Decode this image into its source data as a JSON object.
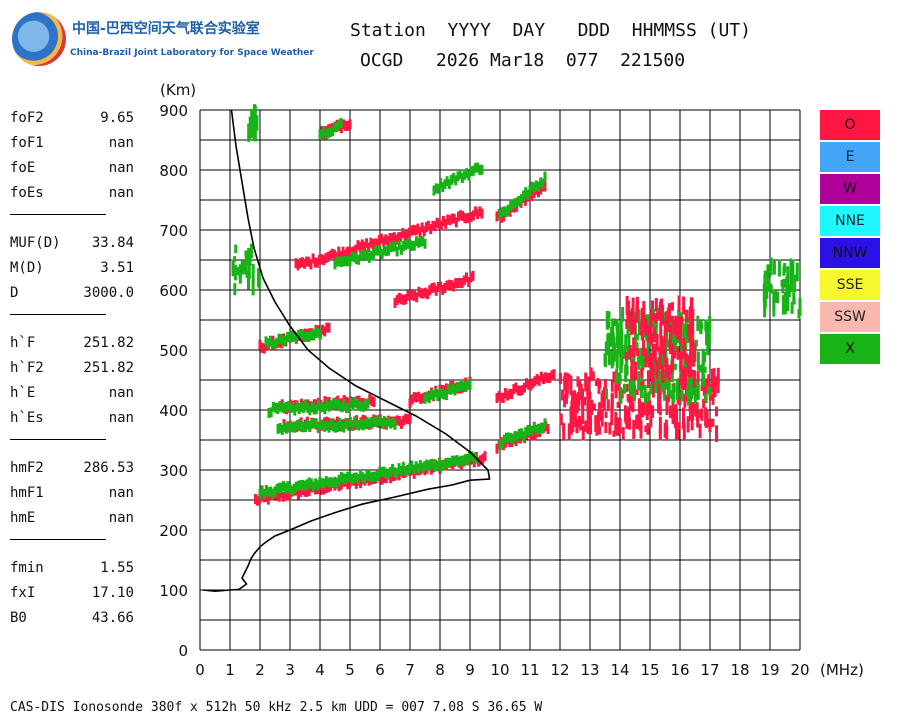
{
  "header": {
    "logo_cn": "中国-巴西空间天气联合实验室",
    "logo_en": "China-Brazil Joint Laboratory for Space Weather",
    "station_header": "Station  YYYY  DAY   DDD  HHMMSS (UT)",
    "station_values": "OCGD   2026 Mar18  077  221500"
  },
  "params": [
    {
      "name": "foF2",
      "value": "9.65"
    },
    {
      "name": "foF1",
      "value": "nan"
    },
    {
      "name": "foE",
      "value": "nan"
    },
    {
      "name": "foEs",
      "value": "nan"
    },
    {
      "name": "MUF(D)",
      "value": "33.84"
    },
    {
      "name": "M(D)",
      "value": "3.51"
    },
    {
      "name": "D",
      "value": "3000.0"
    },
    {
      "name": "h`F",
      "value": "251.82"
    },
    {
      "name": "h`F2",
      "value": "251.82"
    },
    {
      "name": "h`E",
      "value": "nan"
    },
    {
      "name": "h`Es",
      "value": "nan"
    },
    {
      "name": "hmF2",
      "value": "286.53"
    },
    {
      "name": "hmF1",
      "value": "nan"
    },
    {
      "name": "hmE",
      "value": "nan"
    },
    {
      "name": "fmin",
      "value": "1.55"
    },
    {
      "name": "fxI",
      "value": "17.10"
    },
    {
      "name": "B0",
      "value": "43.66"
    }
  ],
  "legend": [
    {
      "label": "O",
      "color": "#ff1744"
    },
    {
      "label": "E",
      "color": "#42a5f5"
    },
    {
      "label": "W",
      "color": "#b0009a"
    },
    {
      "label": "NNE",
      "color": "#1ff7ff"
    },
    {
      "label": "NNW",
      "color": "#2a11e8"
    },
    {
      "label": "SSE",
      "color": "#f7f72e"
    },
    {
      "label": "SSW",
      "color": "#f8b8ae"
    },
    {
      "label": "X",
      "color": "#17b317"
    }
  ],
  "footer": "CAS-DIS Ionosonde 380f x 512h 50 kHz 2.5 km UDD = 007 7.08 S 36.65 W",
  "chart_data": {
    "type": "scatter",
    "xlabel": "(MHz)",
    "ylabel": "(Km)",
    "xlim": [
      0,
      20
    ],
    "ylim": [
      0,
      900
    ],
    "xticks": [
      0,
      1,
      2,
      3,
      4,
      5,
      6,
      7,
      8,
      9,
      10,
      11,
      12,
      13,
      14,
      15,
      16,
      17,
      18,
      19,
      20
    ],
    "yticks": [
      0,
      100,
      200,
      300,
      400,
      500,
      600,
      700,
      800,
      900
    ],
    "grid": true,
    "profile_curve": {
      "name": "electron density profile",
      "x": [
        1.05,
        1.2,
        1.4,
        1.6,
        1.8,
        2.1,
        2.5,
        3.0,
        3.6,
        4.3,
        5.2,
        6.2,
        7.2,
        8.2,
        9.0,
        9.3,
        9.6,
        9.65,
        9.0,
        8.4,
        7.6,
        6.5,
        5.4,
        4.5,
        3.7,
        3.0,
        2.5,
        2.2,
        2.0,
        1.8,
        1.7,
        1.6,
        1.5,
        1.4,
        1.55,
        1.3,
        1.0,
        0.5,
        0.1
      ],
      "y": [
        900,
        840,
        780,
        720,
        670,
        620,
        580,
        540,
        500,
        470,
        440,
        415,
        390,
        360,
        330,
        315,
        300,
        285,
        283,
        275,
        268,
        255,
        243,
        229,
        215,
        200,
        190,
        180,
        172,
        160,
        152,
        140,
        130,
        120,
        110,
        101,
        100,
        98,
        100
      ]
    },
    "echo_traces": [
      {
        "mode": "O",
        "x": [
          1.85,
          9.5
        ],
        "y": [
          250,
          320
        ]
      },
      {
        "mode": "X",
        "x": [
          2.0,
          9.2
        ],
        "y": [
          262,
          320
        ]
      },
      {
        "mode": "O",
        "x": [
          2.0,
          4.3
        ],
        "y": [
          505,
          535
        ]
      },
      {
        "mode": "X",
        "x": [
          2.2,
          4.0
        ],
        "y": [
          510,
          530
        ]
      },
      {
        "mode": "O",
        "x": [
          2.6,
          5.8
        ],
        "y": [
          405,
          415
        ]
      },
      {
        "mode": "X",
        "x": [
          2.3,
          5.6
        ],
        "y": [
          400,
          410
        ]
      },
      {
        "mode": "O",
        "x": [
          2.8,
          7.0
        ],
        "y": [
          375,
          382
        ]
      },
      {
        "mode": "X",
        "x": [
          2.6,
          6.5
        ],
        "y": [
          370,
          380
        ]
      },
      {
        "mode": "O",
        "x": [
          3.2,
          9.4
        ],
        "y": [
          640,
          730
        ]
      },
      {
        "mode": "X",
        "x": [
          4.5,
          7.5
        ],
        "y": [
          645,
          680
        ]
      },
      {
        "mode": "O",
        "x": [
          6.5,
          9.1
        ],
        "y": [
          580,
          620
        ]
      },
      {
        "mode": "O",
        "x": [
          7.0,
          9.0
        ],
        "y": [
          415,
          445
        ]
      },
      {
        "mode": "X",
        "x": [
          7.5,
          9.0
        ],
        "y": [
          420,
          440
        ]
      },
      {
        "mode": "O",
        "x": [
          9.9,
          11.5
        ],
        "y": [
          720,
          775
        ]
      },
      {
        "mode": "X",
        "x": [
          10.0,
          11.5
        ],
        "y": [
          725,
          785
        ]
      },
      {
        "mode": "X",
        "x": [
          7.8,
          9.4
        ],
        "y": [
          770,
          805
        ]
      },
      {
        "mode": "O",
        "x": [
          4.0,
          5.0
        ],
        "y": [
          860,
          880
        ]
      },
      {
        "mode": "X",
        "x": [
          4.0,
          4.7
        ],
        "y": [
          860,
          875
        ]
      },
      {
        "mode": "O",
        "x": [
          9.9,
          11.8
        ],
        "y": [
          420,
          460
        ]
      },
      {
        "mode": "O",
        "x": [
          9.9,
          11.6
        ],
        "y": [
          340,
          370
        ]
      },
      {
        "mode": "X",
        "x": [
          10.0,
          11.5
        ],
        "y": [
          345,
          375
        ]
      }
    ],
    "echo_clusters": [
      {
        "mode": "O",
        "x_range": [
          12.0,
          17.3
        ],
        "y_range": [
          360,
          460
        ]
      },
      {
        "mode": "X",
        "x_range": [
          13.5,
          17.0
        ],
        "y_range": [
          420,
          560
        ]
      },
      {
        "mode": "O",
        "x_range": [
          14.2,
          16.5
        ],
        "y_range": [
          450,
          580
        ]
      },
      {
        "mode": "X",
        "x_range": [
          18.8,
          20.0
        ],
        "y_range": [
          560,
          640
        ]
      },
      {
        "mode": "X",
        "x_range": [
          1.1,
          2.0
        ],
        "y_range": [
          600,
          670
        ]
      },
      {
        "mode": "X",
        "x_range": [
          1.6,
          1.9
        ],
        "y_range": [
          855,
          900
        ]
      }
    ]
  }
}
